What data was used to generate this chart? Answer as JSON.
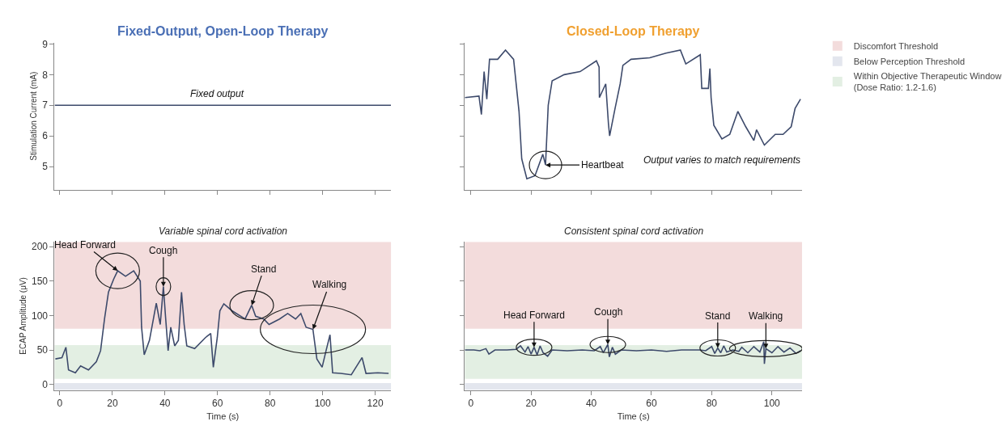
{
  "chart_data": [
    {
      "type": "line",
      "title": "Fixed-Output, Open-Loop Therapy",
      "ylabel": "Stimulation Current (mA)",
      "xlim": [
        -2,
        126
      ],
      "xticks": [
        0,
        20,
        40,
        60,
        80,
        100,
        120
      ],
      "ylim": [
        4.24,
        9.05
      ],
      "yticks": [
        5,
        6,
        7,
        8,
        9
      ],
      "tick_labels": "y",
      "grid": false,
      "marker": "none",
      "series": [
        {
          "color": "#3d4a6b",
          "x": [
            -2,
            126
          ],
          "values": [
            7,
            7
          ]
        }
      ],
      "annotations": [
        {
          "text": "Fixed output",
          "x": 60,
          "y": 7
        }
      ]
    },
    {
      "type": "line",
      "title": "Closed-Loop Therapy",
      "xlim": [
        -2,
        110
      ],
      "xticks": [
        0,
        20,
        40,
        60,
        80,
        100
      ],
      "ylim": [
        4.24,
        9.05
      ],
      "yticks": [
        5,
        6,
        7,
        8,
        9
      ],
      "tick_labels": false,
      "grid": false,
      "marker": "none",
      "series": [
        {
          "color": "#3d4a6b",
          "x": [
            -2,
            2.7,
            3.5,
            4.4,
            5.3,
            6.2,
            8.9,
            11.5,
            14.2,
            16.0,
            16.9,
            18.6,
            21.3,
            23.9,
            24.8,
            25.7,
            27.0,
            31.0,
            36.3,
            41.7,
            42.6,
            42.7,
            44.8,
            45.7,
            46.1,
            47.9,
            49.6,
            50.5,
            53.2,
            59.4,
            64.8,
            69.6,
            71.4,
            76.2,
            76.7,
            78.9,
            79.4,
            79.8,
            80.7,
            83.4,
            86.0,
            88.7,
            91.3,
            94.0,
            94.9,
            97.5,
            101.1,
            103.7,
            106.4,
            107.7,
            109.5
          ],
          "values": [
            7.25,
            7.3,
            6.7,
            8.1,
            7.2,
            8.5,
            8.5,
            8.8,
            8.5,
            6.8,
            5.25,
            4.6,
            4.7,
            5.4,
            5.05,
            7.0,
            7.8,
            8.0,
            8.1,
            8.45,
            8.25,
            7.25,
            7.7,
            6.4,
            6.0,
            6.9,
            7.7,
            8.3,
            8.5,
            8.55,
            8.7,
            8.8,
            8.35,
            8.65,
            7.55,
            7.55,
            8.2,
            7.25,
            6.35,
            5.9,
            6.05,
            6.8,
            6.3,
            5.85,
            6.2,
            5.7,
            6.05,
            6.05,
            6.3,
            6.9,
            7.2
          ]
        }
      ],
      "annotations": [
        {
          "text": "Heartbeat",
          "x": 24.8,
          "y": 5.05
        },
        "Output varies to match requirements"
      ]
    },
    {
      "type": "line",
      "title": "Variable spinal cord activation",
      "xlabel": "Time (s)",
      "ylabel": "ECAP Amplitude (μV)",
      "xlim": [
        -2,
        126
      ],
      "xticks": [
        0,
        20,
        40,
        60,
        80,
        100,
        120
      ],
      "ylim": [
        -8,
        207
      ],
      "yticks": [
        0,
        50,
        100,
        150,
        200
      ],
      "grid": false,
      "marker": "none",
      "legend": "right",
      "series": [
        {
          "color": "#3d4a6b",
          "x": [
            -1.7,
            0.8,
            2.3,
            3.3,
            5.9,
            7.9,
            10.9,
            13.9,
            15.5,
            17.0,
            18.5,
            20.5,
            22.0,
            25.0,
            28.1,
            30.6,
            31.1,
            32.1,
            34.1,
            35.6,
            36.7,
            38.2,
            39.4,
            40.2,
            41.2,
            42.2,
            43.7,
            45.1,
            46.3,
            47.3,
            48.3,
            51.3,
            55.4,
            57.4,
            58.4,
            59.9,
            60.9,
            62.4,
            65.5,
            70.5,
            73.0,
            74.5,
            77.6,
            79.6,
            83.6,
            86.7,
            89.7,
            91.7,
            93.7,
            96.3,
            97.8,
            99.8,
            101.3,
            102.8,
            103.8,
            106.9,
            110.9,
            115.0,
            116.5,
            121.0,
            125.1
          ],
          "values": [
            37,
            39,
            54,
            21,
            17,
            27,
            21,
            33,
            49,
            95,
            134,
            153,
            165,
            157,
            165,
            150,
            83,
            43,
            64,
            95,
            118,
            87,
            142,
            99,
            49,
            83,
            56,
            64,
            134,
            87,
            56,
            52,
            68,
            74,
            25,
            68,
            107,
            117,
            107,
            95,
            115,
            99,
            95,
            87,
            95,
            103,
            95,
            103,
            83,
            80,
            37,
            25,
            49,
            72,
            17,
            16,
            14,
            39,
            16,
            17,
            16
          ]
        }
      ],
      "bands": [
        {
          "axis": "y",
          "from": 81,
          "to": 207,
          "label": "Discomfort Threshold",
          "color": "#f3dcdc"
        },
        {
          "axis": "y",
          "from": -8,
          "to": 2,
          "label": "Below Perception Threshold",
          "color": "#e3e6ee"
        },
        {
          "axis": "y",
          "from": 8,
          "to": 57,
          "label": "Within Objective Therapeutic Window (Dose Ratio: 1.2-1.6)",
          "color": "#e3efe3"
        }
      ],
      "annotations": [
        {
          "text": "Head Forward",
          "x": 22.0,
          "y": 165
        },
        {
          "text": "Cough",
          "x": 39.4,
          "y": 142
        },
        {
          "text": "Stand",
          "x": 73.0,
          "y": 115
        },
        {
          "text": "Walking",
          "x": 96.3,
          "y": 80
        }
      ]
    },
    {
      "type": "line",
      "title": "Consistent spinal cord activation",
      "xlabel": "Time (s)",
      "xlim": [
        -2,
        110
      ],
      "xticks": [
        0,
        20,
        40,
        60,
        80,
        100
      ],
      "ylim": [
        -8,
        207
      ],
      "yticks": [
        0,
        50,
        100,
        150,
        200
      ],
      "tick_labels": "x",
      "grid": false,
      "marker": "none",
      "series": [
        {
          "color": "#3d4a6b",
          "x": [
            -2,
            1,
            3,
            5,
            6,
            8,
            12,
            15,
            16.5,
            18,
            19,
            20,
            21,
            22,
            23,
            24,
            25.5,
            27,
            32,
            37,
            41,
            43,
            44,
            45.5,
            46,
            47,
            48,
            50,
            55,
            60,
            65,
            70,
            76,
            78,
            80,
            81,
            82,
            83,
            84,
            85,
            87,
            89,
            90,
            92,
            94,
            96,
            97.3,
            97.5,
            98,
            100,
            102,
            104,
            106,
            108,
            109.5
          ],
          "values": [
            50,
            50,
            49,
            52,
            44,
            50,
            50,
            51,
            56,
            47,
            55,
            44,
            54,
            43,
            56,
            46,
            41,
            50,
            49,
            50,
            49,
            55,
            46,
            58,
            40,
            54,
            44,
            50,
            49,
            50,
            48,
            50,
            50,
            49,
            55,
            45,
            53,
            46,
            56,
            47,
            50,
            48,
            54,
            46,
            55,
            47,
            62,
            30,
            52,
            46,
            55,
            47,
            53,
            45,
            49
          ]
        }
      ],
      "bands": [
        {
          "axis": "y",
          "from": 81,
          "to": 207,
          "color": "#f3dcdc"
        },
        {
          "axis": "y",
          "from": -8,
          "to": 2,
          "color": "#e3e6ee"
        },
        {
          "axis": "y",
          "from": 8,
          "to": 57,
          "color": "#e3efe3"
        }
      ],
      "annotations": [
        {
          "text": "Head Forward",
          "x": 21,
          "y": 54
        },
        {
          "text": "Cough",
          "x": 45.5,
          "y": 58
        },
        {
          "text": "Stand",
          "x": 82,
          "y": 53
        },
        {
          "text": "Walking",
          "x": 98,
          "y": 52
        }
      ]
    }
  ]
}
